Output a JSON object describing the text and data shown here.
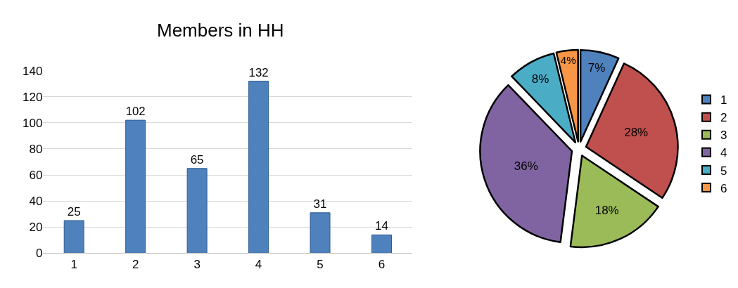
{
  "chart_data": [
    {
      "type": "bar",
      "title": "Members in HH",
      "categories": [
        "1",
        "2",
        "3",
        "4",
        "5",
        "6"
      ],
      "values": [
        25,
        102,
        65,
        132,
        31,
        14
      ],
      "color": "#4f81bd",
      "ylim": [
        0,
        140
      ],
      "yticks": [
        0,
        20,
        40,
        60,
        80,
        100,
        120,
        140
      ],
      "grid": "y",
      "data_labels": true,
      "legend": false
    },
    {
      "type": "pie",
      "categories": [
        "1",
        "2",
        "3",
        "4",
        "5",
        "6"
      ],
      "values": [
        6.8,
        27.6,
        17.6,
        35.8,
        8.4,
        3.8
      ],
      "value_labels": [
        "7%",
        "28%",
        "18%",
        "36%",
        "8%",
        "4%"
      ],
      "colors": [
        "#4f81bd",
        "#c0504d",
        "#9bbb59",
        "#8064a2",
        "#4bacc6",
        "#f79646"
      ],
      "legend": "right"
    }
  ]
}
